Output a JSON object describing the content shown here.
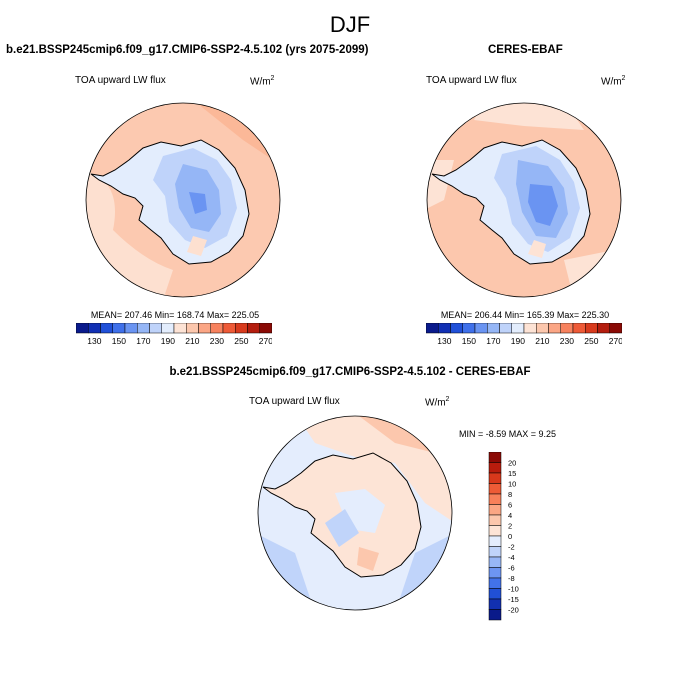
{
  "header": {
    "season": "DJF"
  },
  "panels": {
    "model": {
      "title": "b.e21.BSSP245cmip6.f09_g17.CMIP6-SSP2-4.5.102 (yrs 2075-2099)",
      "variable": "TOA upward LW flux",
      "units_base": "W/m",
      "units_exp": "2",
      "stats": "MEAN= 207.46  Min= 168.74  Max= 225.05"
    },
    "obs": {
      "title": "CERES-EBAF",
      "variable": "TOA upward LW flux",
      "units_base": "W/m",
      "units_exp": "2",
      "stats": "MEAN= 206.44  Min= 165.39  Max= 225.30"
    },
    "diff": {
      "title": "b.e21.BSSP245cmip6.f09_g17.CMIP6-SSP2-4.5.102 - CERES-EBAF",
      "variable": "TOA upward LW flux",
      "units_base": "W/m",
      "units_exp": "2",
      "stats": "MIN =  -8.59 MAX =   9.25"
    }
  },
  "colorbars": {
    "absolute": {
      "labels": [
        "130",
        "150",
        "170",
        "190",
        "210",
        "230",
        "250",
        "270"
      ],
      "colors": [
        "#0a1a8c",
        "#1230b4",
        "#2050d8",
        "#3f70ea",
        "#6a94f2",
        "#95b6f6",
        "#bfd3fa",
        "#e3edfd",
        "#fde3d5",
        "#fcc7ad",
        "#fba685",
        "#f7825e",
        "#ee5a37",
        "#d83a1d",
        "#b41d0e",
        "#8a0a05"
      ]
    },
    "difference": {
      "labels": [
        "20",
        "15",
        "10",
        "8",
        "6",
        "4",
        "2",
        "0",
        "-2",
        "-4",
        "-6",
        "-8",
        "-10",
        "-15",
        "-20"
      ],
      "colors": [
        "#8c0a05",
        "#b81c0d",
        "#d8381b",
        "#ee5b36",
        "#f8805a",
        "#fba684",
        "#fcc7ad",
        "#fde4d6",
        "#e4edfd",
        "#c0d4fa",
        "#98b7f6",
        "#6d95f2",
        "#4272ea",
        "#2150d6",
        "#1230b0",
        "#0a1a8a"
      ]
    }
  }
}
